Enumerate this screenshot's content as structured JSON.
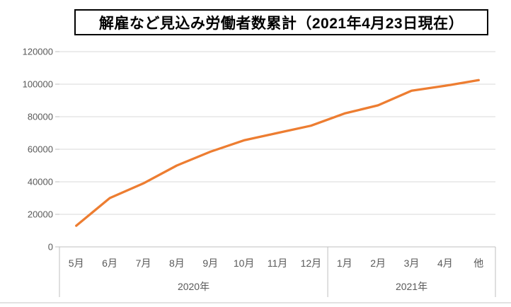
{
  "chart": {
    "title": "解雇など見込み労働者数累計（2021年4月23日現在）"
  },
  "chart_data": {
    "type": "line",
    "title": "解雇など見込み労働者数累計（2021年4月23日現在）",
    "categories": [
      "5月",
      "6月",
      "7月",
      "8月",
      "9月",
      "10月",
      "11月",
      "12月",
      "1月",
      "2月",
      "3月",
      "4月",
      "他"
    ],
    "category_groups": [
      {
        "label": "2020年",
        "span": 8
      },
      {
        "label": "2021年",
        "span": 5
      }
    ],
    "series": [
      {
        "name": "解雇など見込み労働者数累計",
        "values": [
          13000,
          30000,
          39000,
          50000,
          58500,
          65500,
          70000,
          74500,
          82000,
          87000,
          96000,
          99000,
          102500
        ]
      }
    ],
    "xlabel": "",
    "ylabel": "",
    "ylim": [
      0,
      120000
    ],
    "y_ticks": [
      0,
      20000,
      40000,
      60000,
      80000,
      100000,
      120000
    ],
    "grid": "horizontal",
    "legend": "none"
  },
  "colors": {
    "line": "#ED7D31",
    "gridline": "#D9D9D9",
    "axis_line": "#BFBFBF",
    "tick_label": "#595959",
    "title_border": "#000000",
    "background": "#FFFFFF"
  }
}
